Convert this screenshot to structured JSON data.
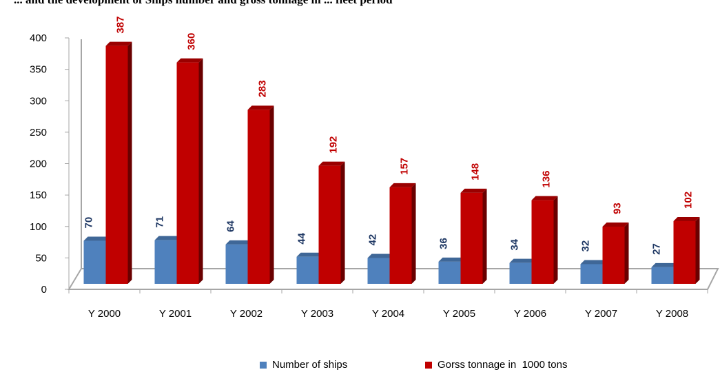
{
  "chart_data": {
    "type": "bar",
    "title": "... and the development of Ships number and gross tonnage in ... fleet period",
    "categories": [
      "Y 2000",
      "Y 2001",
      "Y 2002",
      "Y 2003",
      "Y 2004",
      "Y 2005",
      "Y 2006",
      "Y 2007",
      "Y 2008"
    ],
    "series": [
      {
        "name": "Number of ships",
        "values": [
          70,
          71,
          64,
          44,
          42,
          36,
          34,
          32,
          27
        ],
        "color": "#4f81bd",
        "label_color": "#1f3864"
      },
      {
        "name": "Gorss tonnage in  1000 tons",
        "values": [
          387,
          360,
          283,
          192,
          157,
          148,
          136,
          93,
          102
        ],
        "color": "#c00000",
        "label_color": "#c00000"
      }
    ],
    "ylim": [
      0,
      400
    ],
    "yticks": [
      0,
      50,
      100,
      150,
      200,
      250,
      300,
      350,
      400
    ],
    "grid": false,
    "legend_position": "bottom",
    "style": "3d-clustered-column"
  }
}
